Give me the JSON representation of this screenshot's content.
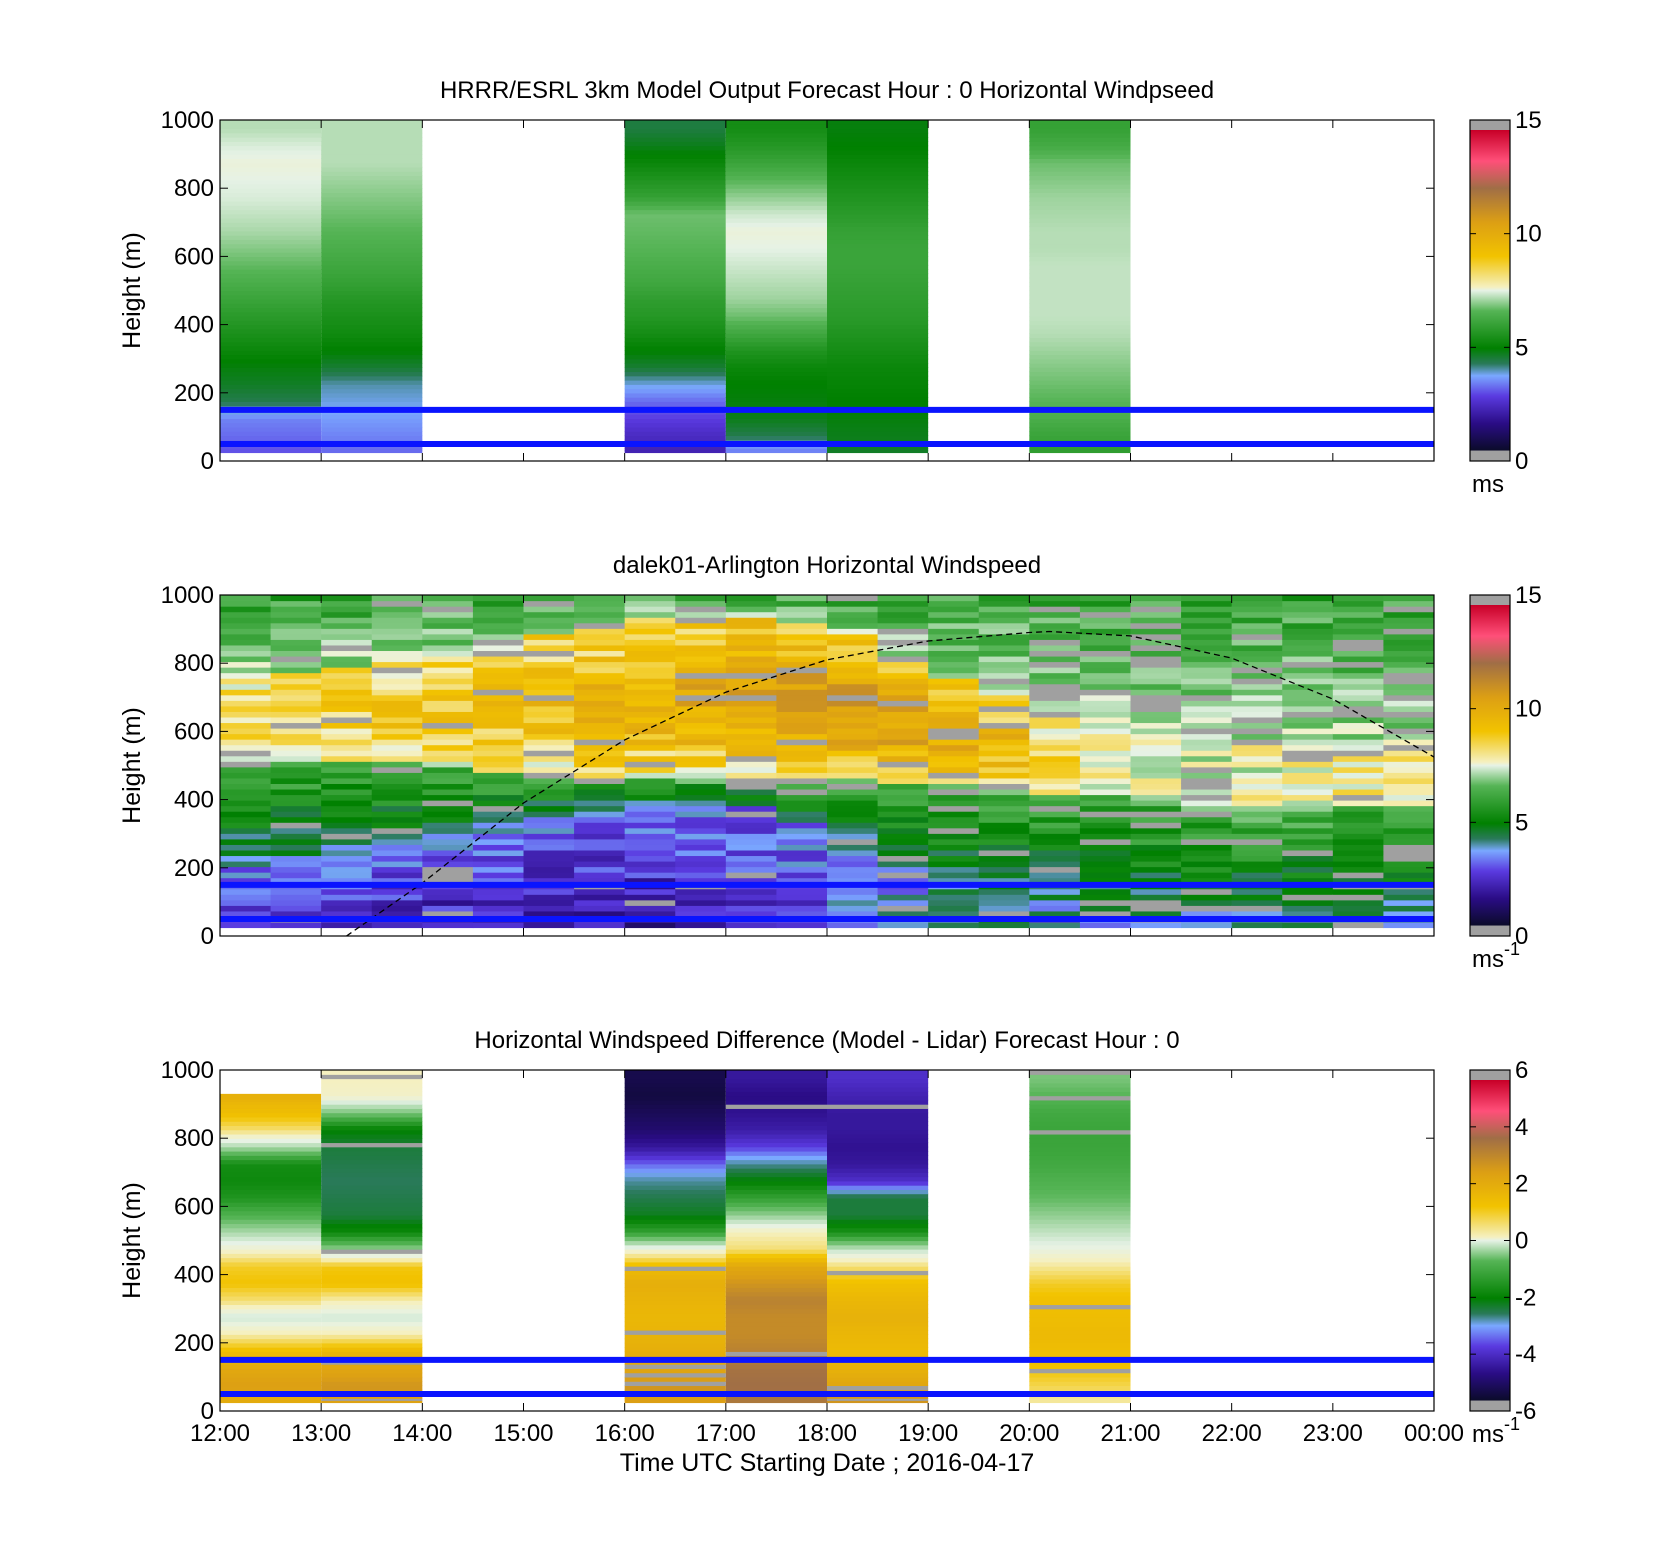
{
  "figure": {
    "x_ticks": [
      "12:00",
      "13:00",
      "14:00",
      "15:00",
      "16:00",
      "17:00",
      "18:00",
      "19:00",
      "20:00",
      "21:00",
      "22:00",
      "23:00",
      "00:00"
    ],
    "xlabel": "Time UTC  Starting Date ; 2016-04-17",
    "ylabel": "Height (m)"
  },
  "chart_data": [
    {
      "type": "heatmap",
      "title": "HRRR/ESRL 3km Model Output   Forecast Hour : 0 Horizontal Windpseed",
      "x_unit": "hours after 12:00 UTC",
      "xlim": [
        0,
        12
      ],
      "ylim": [
        0,
        1000
      ],
      "y_ticks": [
        0,
        200,
        400,
        600,
        800,
        1000
      ],
      "grid": false,
      "colorbar": {
        "min": 0,
        "max": 15,
        "ticks": [
          0,
          5,
          10,
          15
        ],
        "unit": "ms",
        "unit_sup": ""
      },
      "levels_y": [
        25,
        75,
        125,
        175,
        225,
        275,
        325,
        375,
        425,
        475,
        525,
        575,
        625,
        675,
        725,
        775,
        825,
        875,
        925,
        975
      ],
      "columns": [
        {
          "x0": 0,
          "x1": 1,
          "values": [
            2.6,
            2.8,
            3.0,
            4.0,
            4.3,
            4.5,
            4.8,
            5.1,
            5.4,
            5.7,
            6.0,
            6.3,
            6.6,
            6.9,
            7.1,
            7.3,
            7.4,
            7.5,
            7.3,
            7.0
          ]
        },
        {
          "x0": 1,
          "x1": 2,
          "values": [
            2.8,
            3.0,
            3.2,
            3.4,
            3.6,
            4.2,
            4.6,
            4.9,
            5.1,
            5.3,
            5.6,
            5.8,
            6.0,
            6.2,
            6.4,
            6.6,
            6.8,
            7.0,
            7.0,
            7.0
          ]
        },
        {
          "x0": 4,
          "x1": 5,
          "values": [
            1.8,
            2.0,
            2.4,
            2.8,
            3.4,
            4.2,
            4.6,
            5.0,
            5.3,
            5.5,
            5.8,
            6.0,
            6.2,
            6.3,
            6.4,
            5.6,
            5.2,
            4.8,
            4.4,
            4.1
          ]
        },
        {
          "x0": 5,
          "x1": 6,
          "values": [
            3.0,
            4.0,
            4.4,
            4.5,
            4.6,
            4.8,
            5.2,
            5.8,
            6.4,
            6.8,
            7.0,
            7.2,
            7.4,
            7.5,
            7.2,
            6.7,
            6.2,
            5.7,
            5.3,
            5.0
          ]
        },
        {
          "x0": 6,
          "x1": 7,
          "values": [
            4.3,
            4.4,
            4.5,
            4.6,
            4.7,
            4.8,
            5.0,
            5.2,
            5.4,
            5.5,
            5.6,
            5.7,
            5.7,
            5.6,
            5.4,
            5.2,
            5.0,
            4.8,
            4.6,
            4.5
          ]
        },
        {
          "x0": 8,
          "x1": 9,
          "values": [
            5.5,
            5.7,
            6.0,
            6.2,
            6.4,
            6.6,
            6.8,
            7.0,
            7.1,
            7.1,
            7.1,
            7.1,
            7.0,
            7.0,
            6.9,
            6.8,
            6.6,
            6.4,
            5.9,
            5.6
          ]
        }
      ],
      "reference_lines_y": [
        50,
        150
      ],
      "reference_line_color": "#0a14ff"
    },
    {
      "type": "heatmap",
      "title": "dalek01-Arlington  Horizontal Windspeed",
      "x_unit": "hours after 12:00 UTC",
      "xlim": [
        0,
        12
      ],
      "ylim": [
        0,
        1000
      ],
      "y_ticks": [
        0,
        200,
        400,
        600,
        800,
        1000
      ],
      "grid": false,
      "colorbar": {
        "min": 0,
        "max": 15,
        "ticks": [
          0,
          5,
          10,
          15
        ],
        "unit": "ms",
        "unit_sup": "-1"
      },
      "profile_times_h": [
        0,
        0.5,
        1,
        1.5,
        2,
        2.5,
        3,
        3.5,
        4,
        4.5,
        5,
        5.5,
        6,
        6.5,
        7,
        7.5,
        8,
        8.5,
        9,
        9.5,
        10,
        10.5,
        11,
        11.5
      ],
      "surface_wind_ms": [
        2.0,
        1.9,
        1.8,
        1.6,
        1.5,
        1.4,
        1.3,
        1.3,
        1.4,
        1.6,
        1.8,
        2.2,
        2.8,
        3.4,
        4.0,
        4.6,
        5.0,
        5.2,
        5.4,
        5.5,
        5.6,
        5.7,
        5.8,
        5.9
      ],
      "mixed_layer_wind_ms": [
        8.6,
        8.6,
        8.7,
        8.9,
        9.0,
        9.2,
        9.5,
        9.8,
        10.1,
        10.5,
        10.8,
        11.0,
        11.1,
        10.9,
        10.5,
        9.8,
        8.6,
        7.8,
        7.2,
        7.0,
        7.2,
        7.6,
        8.0,
        8.3
      ],
      "jet_top_m": [
        760,
        770,
        790,
        800,
        820,
        850,
        880,
        910,
        930,
        940,
        940,
        920,
        880,
        820,
        760,
        700,
        650,
        620,
        600,
        580,
        560,
        560,
        560,
        560
      ],
      "lower_layer_top_m": [
        520,
        520,
        520,
        510,
        500,
        480,
        470,
        460,
        460,
        460,
        460,
        460,
        460,
        450,
        440,
        430,
        420,
        410,
        400,
        390,
        380,
        380,
        380,
        380
      ],
      "stable_layer_top_m": [
        200,
        200,
        210,
        230,
        260,
        300,
        330,
        360,
        380,
        400,
        380,
        330,
        250,
        180,
        120,
        80,
        50,
        30,
        20,
        20,
        20,
        20,
        20,
        20
      ],
      "missing_fraction_percent": 7,
      "reference_lines_y": [
        50,
        150
      ],
      "reference_line_color": "#0a14ff",
      "boundary_layer_curve": {
        "style": "dashed",
        "color": "#000000",
        "x": [
          1.25,
          2,
          3,
          4,
          5,
          6,
          7,
          8,
          8.2,
          9,
          10,
          11,
          12
        ],
        "y": [
          0,
          155,
          390,
          575,
          715,
          810,
          865,
          890,
          893,
          880,
          815,
          695,
          525
        ]
      }
    },
    {
      "type": "heatmap",
      "title": "Horizontal Windspeed Difference (Model - Lidar) Forecast Hour : 0",
      "x_unit": "hours after 12:00 UTC",
      "xlim": [
        0,
        12
      ],
      "ylim": [
        0,
        1000
      ],
      "y_ticks": [
        0,
        200,
        400,
        600,
        800,
        1000
      ],
      "grid": false,
      "colorbar": {
        "min": -6,
        "max": 6,
        "ticks": [
          -6,
          -4,
          -2,
          0,
          2,
          4,
          6
        ],
        "unit": "ms",
        "unit_sup": "-1"
      },
      "levels_y": [
        25,
        75,
        125,
        175,
        225,
        275,
        325,
        375,
        425,
        475,
        525,
        575,
        625,
        675,
        725,
        775,
        825,
        875,
        925,
        975
      ],
      "columns": [
        {
          "x0": 0,
          "x1": 1,
          "top_m": 930,
          "values": [
            2.0,
            2.4,
            2.1,
            1.4,
            0.3,
            -0.5,
            0.6,
            1.2,
            1.0,
            0.0,
            -0.8,
            -1.6,
            -2.3,
            -2.6,
            -2.5,
            -0.8,
            0.6,
            1.4,
            1.8,
            null
          ]
        },
        {
          "x0": 1,
          "x1": 2,
          "values": [
            2.3,
            2.6,
            2.2,
            1.6,
            0.3,
            -0.5,
            0.3,
            1.3,
            1.1,
            -1.0,
            -2.6,
            -3.2,
            -3.3,
            -3.4,
            -3.3,
            -3.2,
            -2.8,
            -1.2,
            0.1,
            0.2
          ]
        },
        {
          "x0": 4,
          "x1": 5,
          "values": [
            2.4,
            2.6,
            2.2,
            1.9,
            1.7,
            1.6,
            1.7,
            1.9,
            1.4,
            -0.1,
            -2.0,
            -3.0,
            -3.3,
            -3.6,
            -4.2,
            -5.0,
            -5.4,
            -5.6,
            -5.8,
            -5.7
          ]
        },
        {
          "x0": 5,
          "x1": 6,
          "values": [
            3.2,
            3.4,
            3.3,
            3.0,
            2.8,
            2.8,
            3.0,
            2.6,
            2.1,
            0.6,
            0.2,
            -1.0,
            -2.0,
            -2.8,
            -3.6,
            -4.4,
            -4.9,
            -5.1,
            -5.2,
            -5.0
          ]
        },
        {
          "x0": 6,
          "x1": 7,
          "values": [
            2.6,
            2.2,
            1.8,
            1.5,
            1.6,
            1.8,
            1.6,
            1.3,
            0.6,
            -0.6,
            -2.4,
            -3.2,
            -3.2,
            -4.6,
            -5.0,
            -5.1,
            -5.0,
            -5.0,
            -4.8,
            -4.6
          ]
        },
        {
          "x0": 8,
          "x1": 9,
          "values": [
            0.4,
            0.8,
            1.2,
            1.4,
            1.5,
            1.4,
            1.3,
            1.0,
            0.4,
            -0.2,
            -0.6,
            -1.0,
            -1.4,
            -1.6,
            -1.8,
            -1.9,
            -1.9,
            -1.8,
            -1.5,
            -1.2
          ]
        }
      ],
      "reference_lines_y": [
        50,
        150
      ],
      "reference_line_color": "#0a14ff"
    }
  ]
}
